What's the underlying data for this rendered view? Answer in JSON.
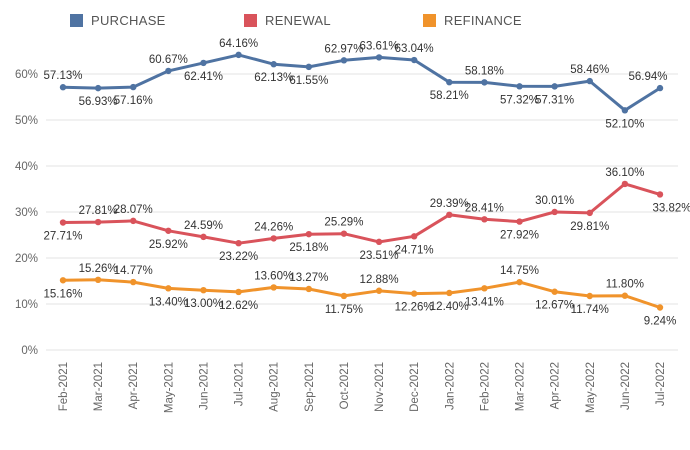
{
  "chart_data": {
    "type": "line",
    "title": "",
    "xlabel": "",
    "ylabel": "",
    "ylim": [
      0,
      65
    ],
    "yticks": [
      0,
      10,
      20,
      30,
      40,
      50,
      60
    ],
    "ytick_labels": [
      "0%",
      "10%",
      "20%",
      "30%",
      "40%",
      "50%",
      "60%"
    ],
    "grid": true,
    "legend_position": "top",
    "categories": [
      "Feb-2021",
      "Mar-2021",
      "Apr-2021",
      "May-2021",
      "Jun-2021",
      "Jul-2021",
      "Aug-2021",
      "Sep-2021",
      "Oct-2021",
      "Nov-2021",
      "Dec-2021",
      "Jan-2022",
      "Feb-2022",
      "Mar-2022",
      "Apr-2022",
      "May-2022",
      "Jun-2022",
      "Jul-2022"
    ],
    "series": [
      {
        "name": "PURCHASE",
        "color": "#4f73a2",
        "values": [
          57.13,
          56.93,
          57.16,
          60.67,
          62.41,
          64.16,
          62.13,
          61.55,
          62.97,
          63.61,
          63.04,
          58.21,
          58.18,
          57.32,
          57.31,
          58.46,
          52.1,
          56.94
        ],
        "labels": [
          "57.13%",
          "56.93%",
          "57.16%",
          "60.67%",
          "62.41%",
          "64.16%",
          "62.13%",
          "61.55%",
          "62.97%",
          "63.61%",
          "63.04%",
          "58.21%",
          "58.18%",
          "57.32%",
          "57.31%",
          "58.46%",
          "52.10%",
          "56.94%"
        ]
      },
      {
        "name": "RENEWAL",
        "color": "#d9535b",
        "values": [
          27.71,
          27.81,
          28.07,
          25.92,
          24.59,
          23.22,
          24.26,
          25.18,
          25.29,
          23.51,
          24.71,
          29.39,
          28.41,
          27.92,
          30.01,
          29.81,
          36.1,
          33.82
        ],
        "labels": [
          "27.71%",
          "27.81%",
          "28.07%",
          "25.92%",
          "24.59%",
          "23.22%",
          "24.26%",
          "25.18%",
          "25.29%",
          "23.51%",
          "24.71%",
          "29.39%",
          "28.41%",
          "27.92%",
          "30.01%",
          "29.81%",
          "36.10%",
          "33.82%"
        ]
      },
      {
        "name": "REFINANCE",
        "color": "#f0932b",
        "values": [
          15.16,
          15.26,
          14.77,
          13.4,
          13.0,
          12.62,
          13.6,
          13.27,
          11.75,
          12.88,
          12.26,
          12.4,
          13.41,
          14.75,
          12.67,
          11.74,
          11.8,
          9.24
        ],
        "labels": [
          "15.16%",
          "15.26%",
          "14.77%",
          "13.40%",
          "13.00%",
          "12.62%",
          "13.60%",
          "13.27%",
          "11.75%",
          "12.88%",
          "12.26%",
          "12.40%",
          "13.41%",
          "14.75%",
          "12.67%",
          "11.74%",
          "11.80%",
          "9.24%"
        ]
      }
    ]
  }
}
